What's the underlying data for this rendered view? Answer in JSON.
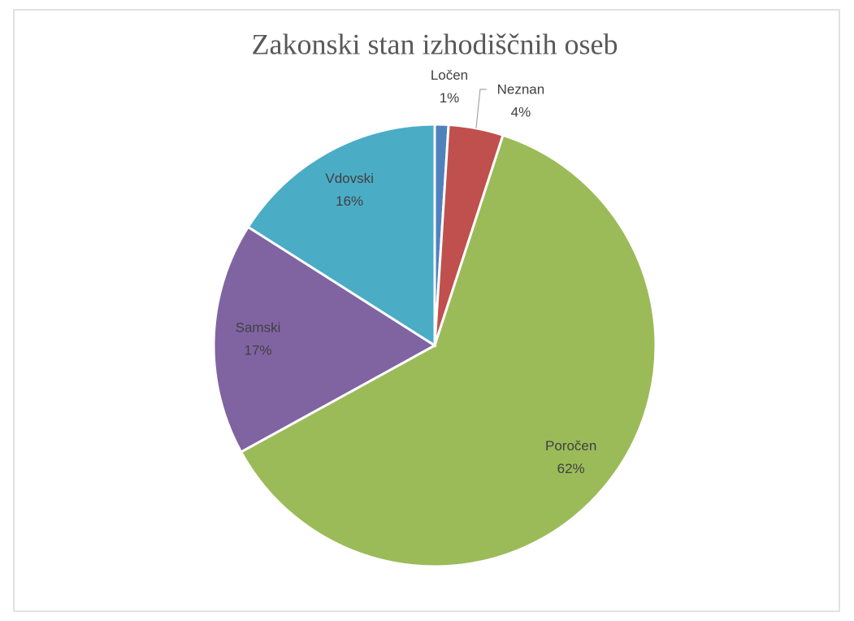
{
  "chart_data": {
    "type": "pie",
    "title": "Zakonski stan izhodiščnih oseb",
    "categories": [
      "Ločen",
      "Neznan",
      "Poročen",
      "Samski",
      "Vdovski"
    ],
    "values": [
      1,
      4,
      62,
      17,
      16
    ],
    "value_labels": [
      "1%",
      "4%",
      "62%",
      "17%",
      "16%"
    ],
    "colors": [
      "#4f81bd",
      "#c0504d",
      "#9bbb59",
      "#8064a2",
      "#4bacc6"
    ]
  }
}
